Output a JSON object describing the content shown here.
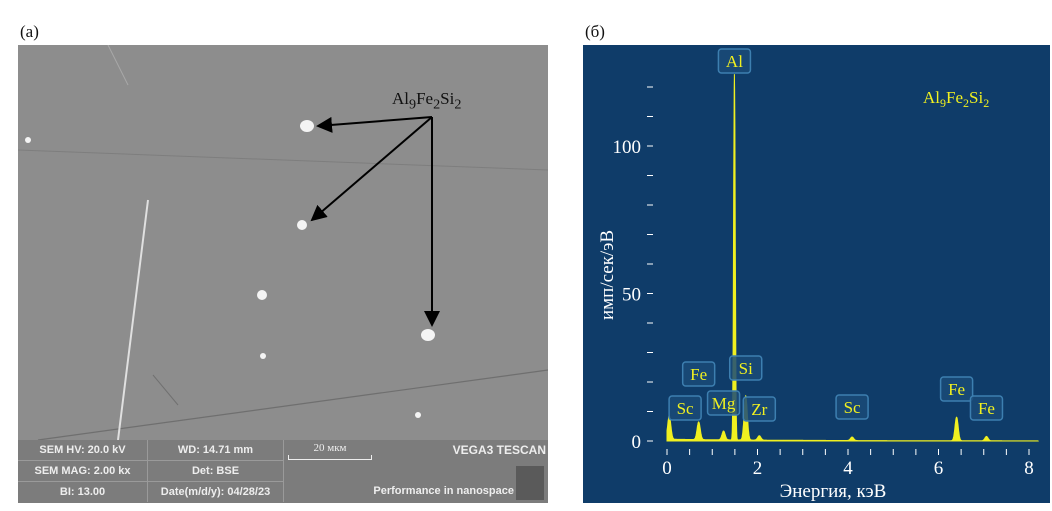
{
  "panel_a": {
    "label": "(a)",
    "phase_label": {
      "base": "Al",
      "sub1": "9",
      "mid": "Fe",
      "sub2": "2",
      "mid2": "Si",
      "sub3": "2"
    },
    "info": {
      "hv": "SEM HV: 20.0 kV",
      "wd": "WD: 14.71 mm",
      "mag": "SEM MAG: 2.00 kx",
      "det": "Det: BSE",
      "bi": "BI: 13.00",
      "date": "Date(m/d/y): 04/28/23",
      "scale": "20 мкм",
      "brand": "VEGA3 TESCAN",
      "slogan": "Performance in nanospace"
    }
  },
  "panel_b": {
    "label": "(б)",
    "background": "#0f3c69",
    "trace_color": "#f0f020"
  },
  "chart_data": {
    "type": "line",
    "title": "",
    "annotation": {
      "base": "Al",
      "sub1": "9",
      "mid": "Fe",
      "sub2": "2",
      "mid2": "Si",
      "sub3": "2"
    },
    "xlabel": "Энергия, кэВ",
    "ylabel": "имп/сек/эВ",
    "xlim": [
      0,
      8.2
    ],
    "ylim": [
      0,
      128
    ],
    "xticks": [
      0,
      2,
      4,
      6,
      8
    ],
    "yticks": [
      0,
      50,
      100
    ],
    "grid": false,
    "peaks": [
      {
        "energy": 0.05,
        "height": 8
      },
      {
        "energy": 0.7,
        "height": 6
      },
      {
        "energy": 1.25,
        "height": 3
      },
      {
        "energy": 1.49,
        "height": 124
      },
      {
        "energy": 1.74,
        "height": 15
      },
      {
        "energy": 2.04,
        "height": 1.5
      },
      {
        "energy": 4.09,
        "height": 1.2
      },
      {
        "energy": 6.4,
        "height": 8
      },
      {
        "energy": 7.06,
        "height": 1.5
      }
    ],
    "peak_labels": [
      {
        "text": "Al",
        "energy": 1.49
      },
      {
        "text": "Si",
        "energy": 1.74
      },
      {
        "text": "Fe",
        "energy": 0.7
      },
      {
        "text": "Sc",
        "energy": 0.4
      },
      {
        "text": "Mg",
        "energy": 1.25
      },
      {
        "text": "Zr",
        "energy": 2.04
      },
      {
        "text": "Sc",
        "energy": 4.09
      },
      {
        "text": "Fe",
        "energy": 6.4
      },
      {
        "text": "Fe",
        "energy": 7.06
      }
    ]
  }
}
